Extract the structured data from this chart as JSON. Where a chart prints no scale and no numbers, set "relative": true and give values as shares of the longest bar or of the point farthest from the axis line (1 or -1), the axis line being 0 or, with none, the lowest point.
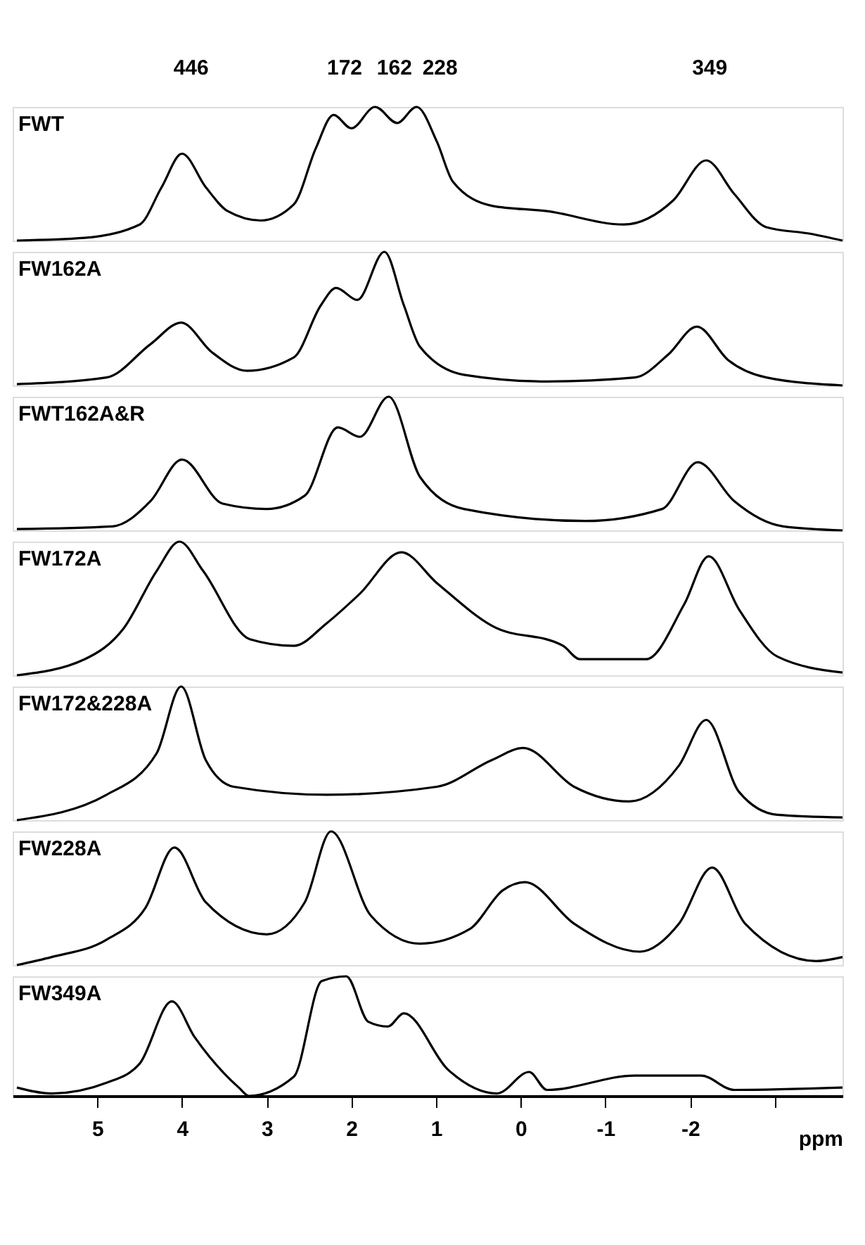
{
  "chart_data": [
    {
      "type": "line",
      "relative": true,
      "xlim": [
        6,
        -3.8
      ],
      "tick_labels": false,
      "annotations": [
        "446",
        "172",
        "162",
        "228",
        "349"
      ],
      "x": [
        5.95,
        5.15,
        4.5,
        4.24,
        4.0,
        3.72,
        3.46,
        3.07,
        2.68,
        2.42,
        2.21,
        2.0,
        1.72,
        1.46,
        1.23,
        0.99,
        0.8,
        0.34,
        -0.31,
        -1.22,
        -1.8,
        -2.19,
        -2.52,
        -2.9,
        -3.43,
        -3.8
      ],
      "series": [
        {
          "name": "FWT",
          "color": "#000000",
          "values": [
            0,
            0.02,
            0.12,
            0.4,
            0.65,
            0.4,
            0.22,
            0.15,
            0.27,
            0.69,
            0.94,
            0.84,
            1.0,
            0.88,
            1.0,
            0.74,
            0.44,
            0.26,
            0.22,
            0.12,
            0.3,
            0.6,
            0.35,
            0.1,
            0.05,
            0
          ]
        }
      ]
    },
    {
      "type": "line",
      "relative": true,
      "xlim": [
        6,
        -3.8
      ],
      "tick_labels": false,
      "x": [
        5.95,
        4.89,
        4.37,
        4.01,
        3.65,
        3.23,
        2.68,
        2.36,
        2.18,
        1.93,
        1.61,
        1.38,
        1.19,
        0.67,
        -0.31,
        -1.35,
        -1.74,
        -2.08,
        -2.45,
        -2.9,
        -3.8
      ],
      "series": [
        {
          "name": "FW162A",
          "color": "#000000",
          "values": [
            0.01,
            0.06,
            0.31,
            0.47,
            0.25,
            0.11,
            0.21,
            0.6,
            0.73,
            0.64,
            1.0,
            0.6,
            0.29,
            0.08,
            0.03,
            0.06,
            0.23,
            0.44,
            0.19,
            0.06,
            0
          ]
        }
      ]
    },
    {
      "type": "line",
      "relative": true,
      "xlim": [
        6,
        -3.8
      ],
      "tick_labels": false,
      "x": [
        5.95,
        4.82,
        4.37,
        4.0,
        3.52,
        3.0,
        2.55,
        2.16,
        1.9,
        1.56,
        1.19,
        0.67,
        -0.76,
        -1.67,
        -2.09,
        -2.52,
        -3.1,
        -3.8
      ],
      "series": [
        {
          "name": "FWT162A&R",
          "color": "#000000",
          "values": [
            0.01,
            0.03,
            0.22,
            0.53,
            0.2,
            0.16,
            0.26,
            0.77,
            0.7,
            1.0,
            0.4,
            0.16,
            0.07,
            0.16,
            0.51,
            0.22,
            0.03,
            0
          ]
        }
      ]
    },
    {
      "type": "line",
      "relative": true,
      "xlim": [
        6,
        -3.8
      ],
      "tick_labels": false,
      "x": [
        5.95,
        5.15,
        4.69,
        4.3,
        4.03,
        3.75,
        3.2,
        2.68,
        2.29,
        1.9,
        1.41,
        0.99,
        0.34,
        -0.5,
        -0.7,
        -1.48,
        -1.93,
        -2.22,
        -2.58,
        -3.03,
        -3.8
      ],
      "series": [
        {
          "name": "FW172A",
          "color": "#000000",
          "values": [
            0,
            0.12,
            0.35,
            0.78,
            1.0,
            0.78,
            0.27,
            0.22,
            0.39,
            0.61,
            0.92,
            0.69,
            0.37,
            0.22,
            0.12,
            0.12,
            0.53,
            0.89,
            0.49,
            0.14,
            0.02
          ]
        }
      ]
    },
    {
      "type": "line",
      "relative": true,
      "xlim": [
        6,
        -3.8
      ],
      "tick_labels": false,
      "x": [
        5.95,
        4.89,
        4.3,
        4.01,
        3.72,
        3.39,
        2.29,
        0.99,
        0.34,
        -0.03,
        -0.63,
        -1.28,
        -1.87,
        -2.19,
        -2.58,
        -3.03,
        -3.8
      ],
      "series": [
        {
          "name": "FW172&228A",
          "color": "#000000",
          "values": [
            0,
            0.19,
            0.5,
            1.0,
            0.45,
            0.25,
            0.19,
            0.25,
            0.45,
            0.54,
            0.25,
            0.14,
            0.41,
            0.75,
            0.21,
            0.04,
            0.02
          ]
        }
      ]
    },
    {
      "type": "line",
      "relative": true,
      "xlim": [
        6,
        -3.8
      ],
      "tick_labels": false,
      "x": [
        5.95,
        5.54,
        4.89,
        4.43,
        4.09,
        3.72,
        3.0,
        2.55,
        2.24,
        1.77,
        1.19,
        0.6,
        0.21,
        -0.05,
        -0.63,
        -1.41,
        -1.87,
        -2.26,
        -2.65,
        -3.49,
        -3.8
      ],
      "series": [
        {
          "name": "FW228A",
          "color": "#000000",
          "values": [
            0,
            0.06,
            0.19,
            0.43,
            0.88,
            0.47,
            0.23,
            0.47,
            1.0,
            0.37,
            0.16,
            0.27,
            0.56,
            0.62,
            0.31,
            0.1,
            0.31,
            0.73,
            0.31,
            0.03,
            0.06
          ]
        }
      ]
    },
    {
      "type": "line",
      "relative": true,
      "xlim": [
        6,
        -3.8
      ],
      "xticks": [
        5,
        4,
        3,
        2,
        1,
        0,
        -1,
        -2,
        {
          "value": -3,
          "label": null
        }
      ],
      "tick_labels": "x",
      "xlabel": "ppm",
      "x": [
        5.95,
        5.54,
        4.89,
        4.5,
        4.12,
        3.85,
        3.33,
        3.21,
        2.68,
        2.35,
        2.06,
        1.8,
        1.57,
        1.38,
        0.86,
        0.28,
        -0.1,
        -0.31,
        -1.35,
        -2.13,
        -2.52,
        -3.8
      ],
      "series": [
        {
          "name": "FW349A",
          "color": "#000000",
          "values": [
            0.07,
            0.02,
            0.11,
            0.27,
            0.79,
            0.49,
            0.07,
            0,
            0.16,
            0.96,
            1.0,
            0.62,
            0.58,
            0.69,
            0.22,
            0.02,
            0.2,
            0.05,
            0.17,
            0.17,
            0.05,
            0.07
          ]
        }
      ]
    }
  ]
}
